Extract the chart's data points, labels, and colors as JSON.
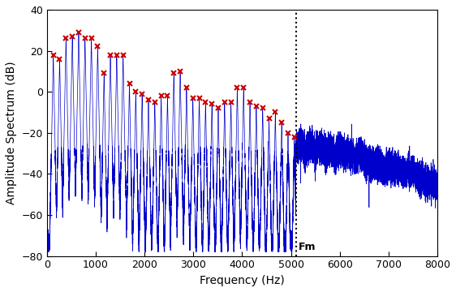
{
  "xlabel": "Frequency (Hz)",
  "ylabel": "Amplitude Spectrum (dB)",
  "xlim": [
    0,
    8000
  ],
  "ylim": [
    -80,
    40
  ],
  "yticks": [
    -80,
    -60,
    -40,
    -20,
    0,
    20,
    40
  ],
  "xticks": [
    0,
    1000,
    2000,
    3000,
    4000,
    5000,
    6000,
    7000,
    8000
  ],
  "fm": 5100,
  "fm_label": "Fm",
  "line_color": "#0000CC",
  "marker_color": "#CC0000",
  "dotted_color": "black",
  "background_color": "#ffffff",
  "harmonic_peaks": {
    "130": 18,
    "260": 16,
    "390": 26,
    "520": 27,
    "650": 29,
    "780": 26,
    "910": 26,
    "1040": 22,
    "1170": 9,
    "1300": 18,
    "1430": 18,
    "1560": 18,
    "1690": 4,
    "1820": 0,
    "1950": -1,
    "2080": -4,
    "2210": -5,
    "2340": -2,
    "2470": -2,
    "2600": 9,
    "2730": 10,
    "2860": 2,
    "2990": -3,
    "3120": -3,
    "3250": -5,
    "3380": -6,
    "3510": -8,
    "3640": -5,
    "3770": -5,
    "3900": 2,
    "4030": 2,
    "4160": -5,
    "4290": -7,
    "4420": -8,
    "4550": -13,
    "4680": -10,
    "4810": -15,
    "4940": -20,
    "5070": -22
  },
  "post_fm_envelope": [
    [
      5100,
      -28
    ],
    [
      5200,
      -25
    ],
    [
      5300,
      -28
    ],
    [
      5400,
      -27
    ],
    [
      5500,
      -29
    ],
    [
      5600,
      -26
    ],
    [
      5700,
      -30
    ],
    [
      5800,
      -28
    ],
    [
      5900,
      -32
    ],
    [
      6000,
      -28
    ],
    [
      6100,
      -31
    ],
    [
      6200,
      -29
    ],
    [
      6300,
      -32
    ],
    [
      6400,
      -30
    ],
    [
      6500,
      -33
    ],
    [
      6600,
      -35
    ],
    [
      6700,
      -37
    ],
    [
      6800,
      -36
    ],
    [
      6900,
      -38
    ],
    [
      7000,
      -36
    ],
    [
      7100,
      -38
    ],
    [
      7200,
      -37
    ],
    [
      7300,
      -40
    ],
    [
      7400,
      -38
    ],
    [
      7500,
      -40
    ],
    [
      7600,
      -42
    ],
    [
      7700,
      -43
    ],
    [
      7800,
      -45
    ],
    [
      7900,
      -44
    ],
    [
      8000,
      -46
    ]
  ]
}
